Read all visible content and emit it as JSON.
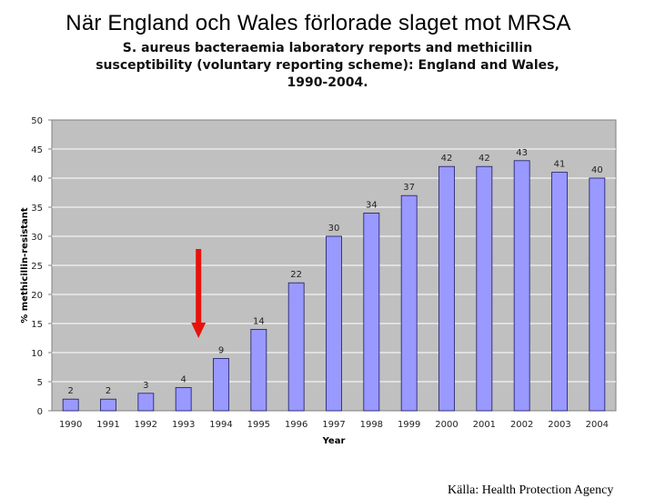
{
  "slide_title": "När England och Wales förlorade slaget mot MRSA",
  "source_text": "Källa: Health Protection Agency",
  "arrow_color": "#e8120c",
  "chart_data": {
    "type": "bar",
    "title_lines": [
      "S. aureus bacteraemia laboratory reports and methicillin",
      "susceptibility (voluntary reporting scheme): England and Wales,",
      "1990-2004."
    ],
    "categories": [
      "1990",
      "1991",
      "1992",
      "1993",
      "1994",
      "1995",
      "1996",
      "1997",
      "1998",
      "1999",
      "2000",
      "2001",
      "2002",
      "2003",
      "2004"
    ],
    "values": [
      2,
      2,
      3,
      4,
      9,
      14,
      22,
      30,
      34,
      37,
      42,
      42,
      43,
      41,
      40
    ],
    "xlabel": "Year",
    "ylabel": "% methicillin-resistant",
    "ylim": [
      0,
      50
    ],
    "yticks": [
      0,
      5,
      10,
      15,
      20,
      25,
      30,
      35,
      40,
      45,
      50
    ],
    "grid": true,
    "bar_color": "#9999ff",
    "plot_bg": "#c0c0c0",
    "annotation": "red downward arrow at 1993-1994"
  }
}
